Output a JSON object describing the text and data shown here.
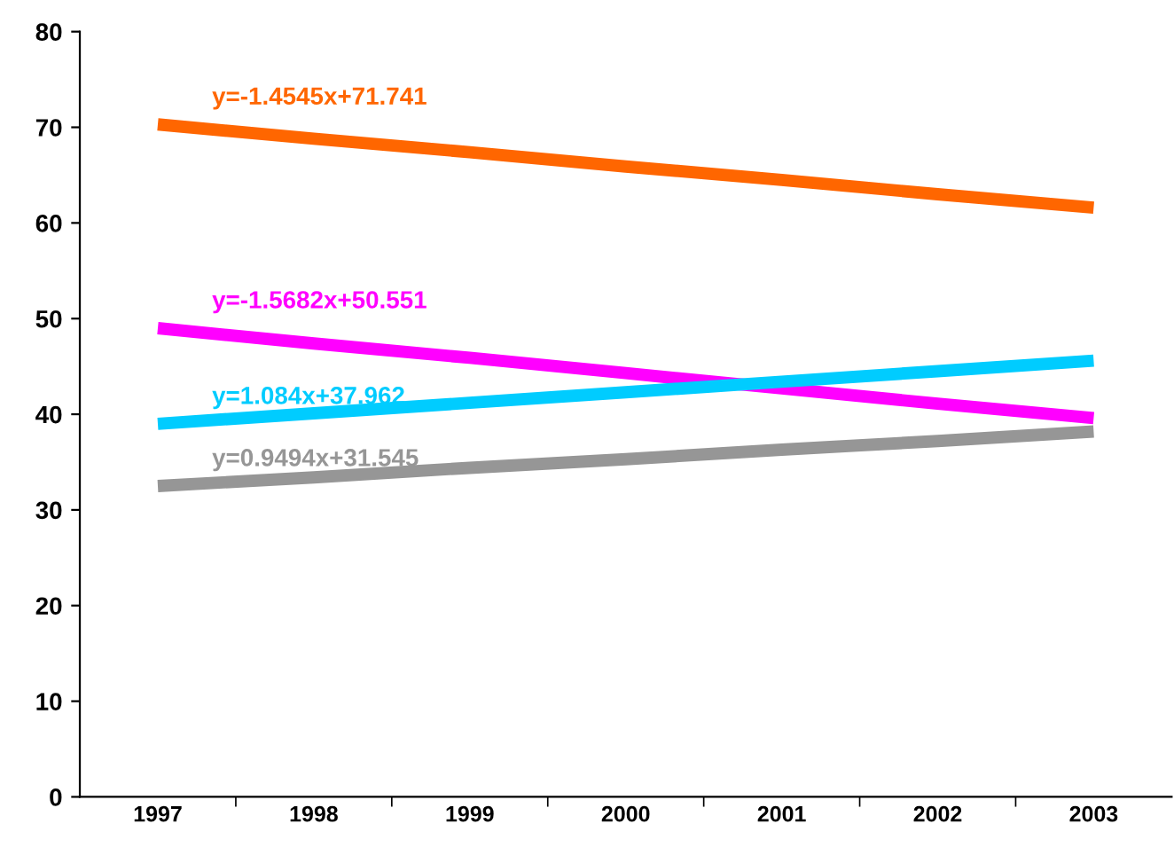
{
  "chart_data": {
    "type": "line",
    "categories": [
      "1997",
      "1998",
      "1999",
      "2000",
      "2001",
      "2002",
      "2003"
    ],
    "series": [
      {
        "color": "#ff6600",
        "values": [
          70.3,
          68.8,
          67.4,
          65.9,
          64.5,
          63.0,
          61.6
        ]
      },
      {
        "color": "#ff00ff",
        "values": [
          49.0,
          47.4,
          45.9,
          44.3,
          42.7,
          41.1,
          39.6
        ]
      },
      {
        "color": "#00ccff",
        "values": [
          39.0,
          40.1,
          41.2,
          42.3,
          43.4,
          44.5,
          45.6
        ]
      },
      {
        "color": "#969696",
        "values": [
          32.5,
          33.4,
          34.4,
          35.3,
          36.3,
          37.2,
          38.2
        ]
      }
    ],
    "annotations": [
      "y=-1.4545x+71.741",
      "y=-1.5682x+50.551",
      "y=1.084x+37.962",
      "y=0.9494x+31.545"
    ],
    "ylim": [
      0,
      80
    ],
    "yticks": [
      0,
      10,
      20,
      30,
      40,
      50,
      60,
      70,
      80
    ],
    "grid": false,
    "legend": false,
    "marker": "none",
    "line_style": "solid"
  }
}
